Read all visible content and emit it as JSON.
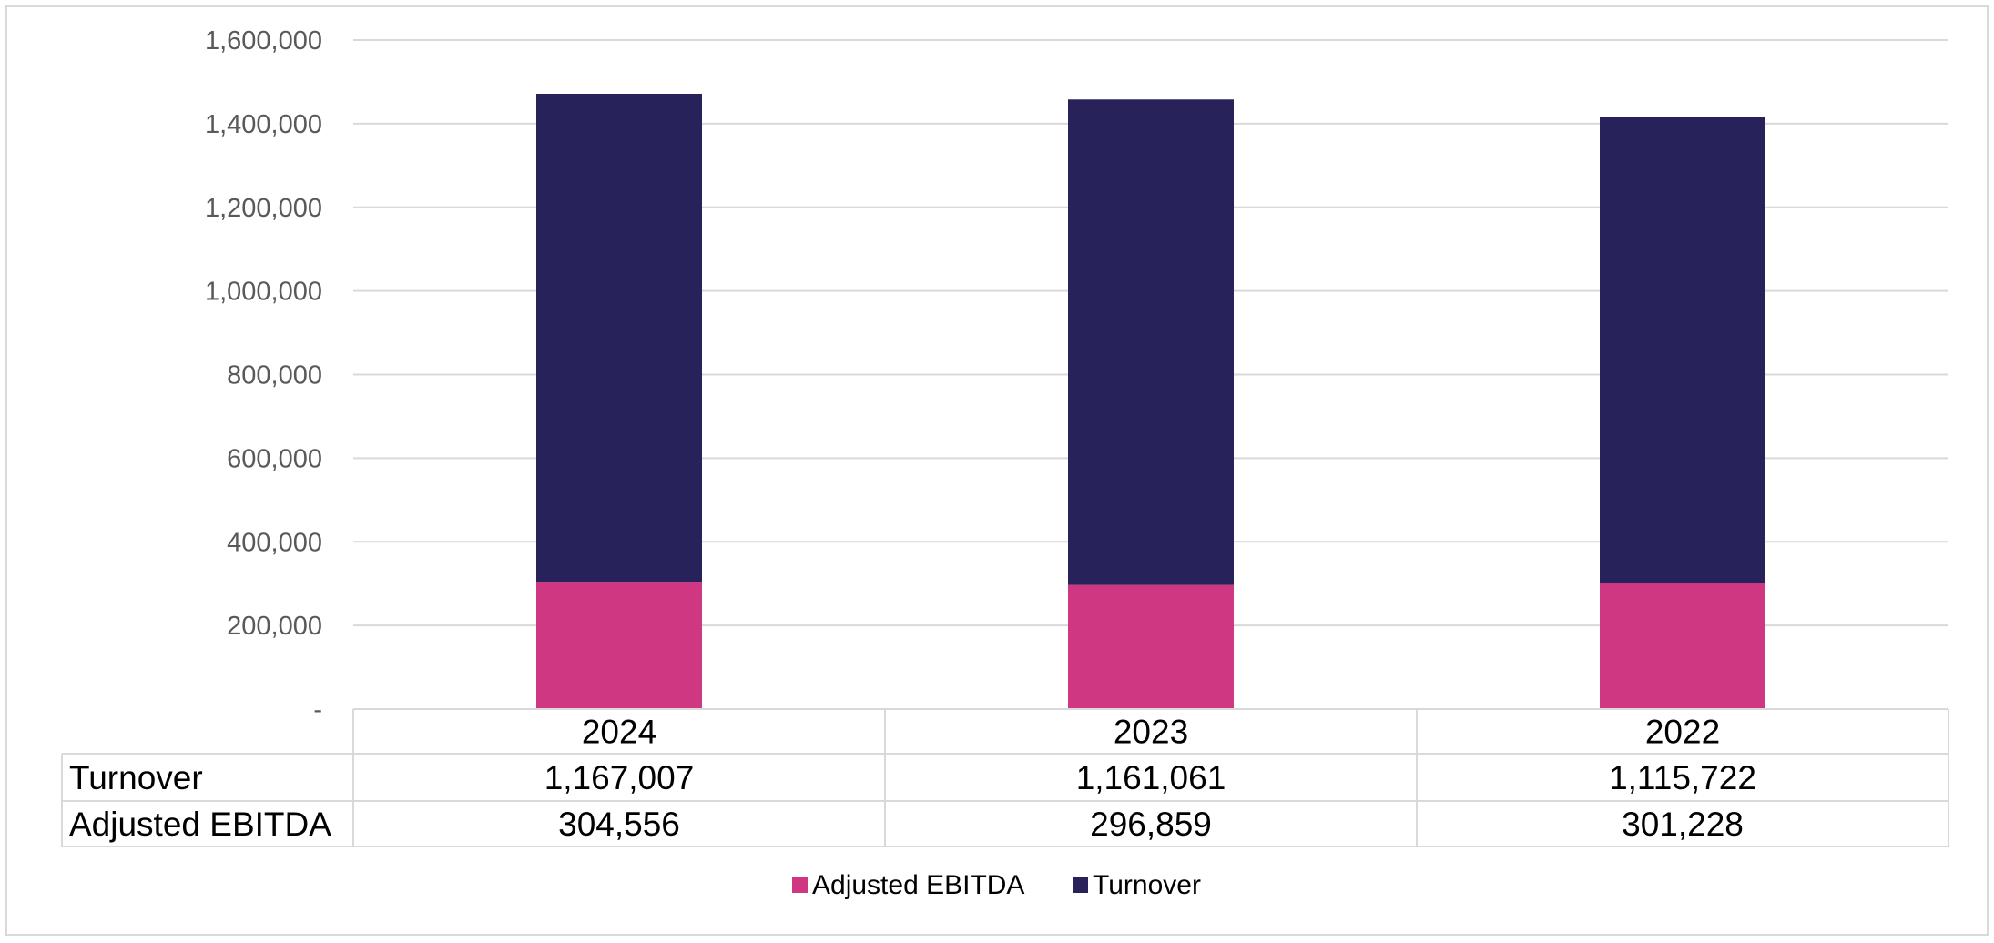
{
  "chart_data": {
    "type": "bar",
    "stacked": true,
    "categories": [
      "2024",
      "2023",
      "2022"
    ],
    "series": [
      {
        "name": "Adjusted EBITDA",
        "values": [
          304556,
          296859,
          301228
        ],
        "color": "#cf3783",
        "value_labels": [
          "304,556",
          "296,859",
          "301,228"
        ]
      },
      {
        "name": "Turnover",
        "values": [
          1167007,
          1161061,
          1115722
        ],
        "color": "#27235a",
        "value_labels": [
          "1,167,007",
          "1,161,061",
          "1,115,722"
        ]
      }
    ],
    "yticks": [
      {
        "value": 0,
        "label": "-"
      },
      {
        "value": 200000,
        "label": "200,000"
      },
      {
        "value": 400000,
        "label": "400,000"
      },
      {
        "value": 600000,
        "label": "600,000"
      },
      {
        "value": 800000,
        "label": "800,000"
      },
      {
        "value": 1000000,
        "label": "1,000,000"
      },
      {
        "value": 1200000,
        "label": "1,200,000"
      },
      {
        "value": 1400000,
        "label": "1,400,000"
      },
      {
        "value": 1600000,
        "label": "1,600,000"
      }
    ],
    "ylim": [
      0,
      1600000
    ],
    "grid": true,
    "data_table": true,
    "legend_position": "bottom"
  }
}
